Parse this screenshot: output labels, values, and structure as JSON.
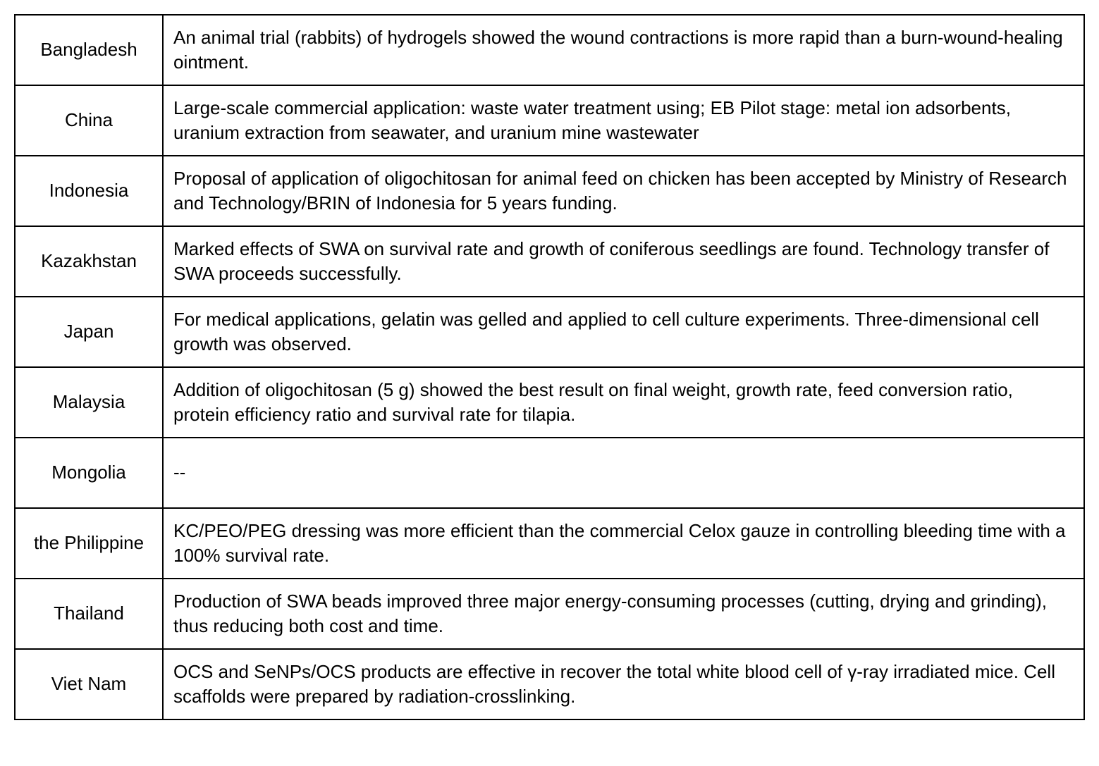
{
  "table": {
    "border_color": "#000000",
    "background_color": "#ffffff",
    "text_color": "#000000",
    "font_size": 26,
    "country_col_width": 210,
    "rows": [
      {
        "country": "Bangladesh",
        "description": "An animal trial (rabbits) of hydrogels showed the wound contractions is more rapid than a burn-wound-healing ointment."
      },
      {
        "country": "China",
        "description": "Large-scale commercial application: waste water treatment using; EB Pilot stage: metal ion adsorbents, uranium extraction from seawater, and  uranium mine wastewater"
      },
      {
        "country": "Indonesia",
        "description": " Proposal of application of oligochitosan for animal feed on chicken has been accepted by Ministry of Research and Technology/BRIN of Indonesia for 5 years funding."
      },
      {
        "country": "Kazakhstan",
        "description": " Marked effects of SWA on survival rate and growth of coniferous seedlings are found. Technology transfer of SWA proceeds successfully."
      },
      {
        "country": "Japan",
        "description": " For medical applications, gelatin was gelled and applied to cell culture experiments. Three-dimensional cell growth was observed."
      },
      {
        "country": "Malaysia",
        "description": " Addition of oligochitosan (5 g) showed the best result on final weight, growth rate, feed conversion ratio, protein efficiency ratio and survival rate for tilapia."
      },
      {
        "country": "Mongolia",
        "description": "--"
      },
      {
        "country": "the Philippine",
        "description": "KC/PEO/PEG dressing was more efficient than the commercial Celox gauze in controlling bleeding time with a 100% survival rate."
      },
      {
        "country": "Thailand",
        "description": "Production of SWA beads improved three major energy-consuming processes (cutting, drying and grinding), thus reducing both cost and time."
      },
      {
        "country": "Viet Nam",
        "description": "OCS and SeNPs/OCS products are effective in recover the total white blood cell of γ-ray irradiated mice. Cell scaffolds  were prepared by radiation-crosslinking."
      }
    ]
  }
}
